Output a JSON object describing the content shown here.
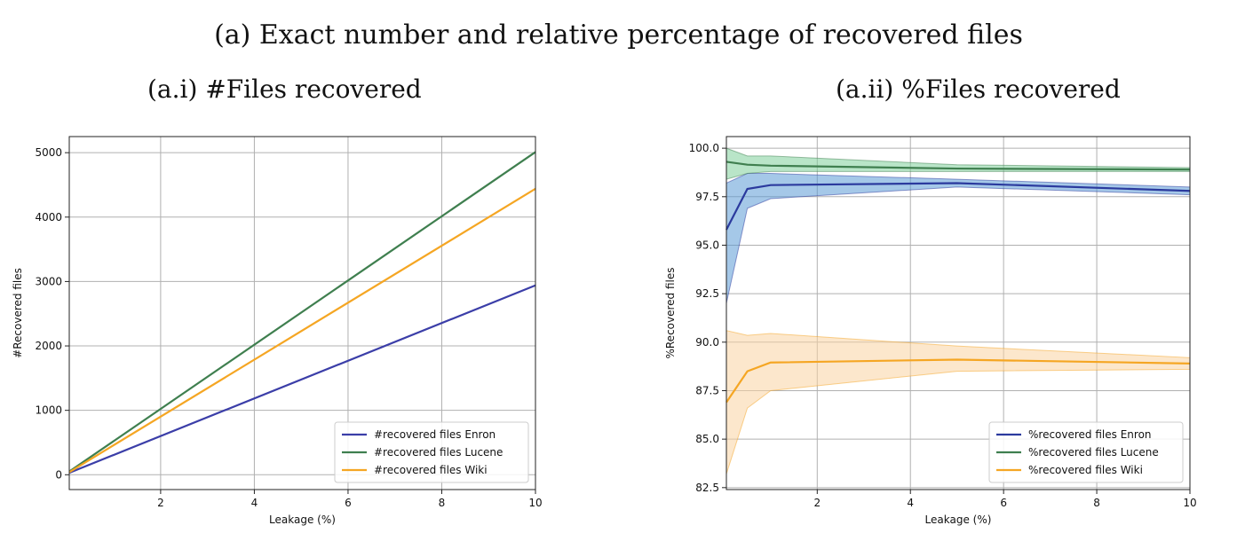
{
  "figure": {
    "title": "(a) Exact number and relative percentage of recovered files"
  },
  "chart_data": [
    {
      "type": "line",
      "title": "(a.i) #Files recovered",
      "xlabel": "Leakage (%)",
      "ylabel": "#Recovered files",
      "xlim": [
        0.05,
        10
      ],
      "ylim": [
        -230,
        5250
      ],
      "xticks": [
        "2",
        "4",
        "6",
        "8",
        "10"
      ],
      "yticks": [
        "0",
        "1000",
        "2000",
        "3000",
        "4000",
        "5000"
      ],
      "grid": true,
      "legend": "bottom-right",
      "series": [
        {
          "name": "#recovered files Enron",
          "color": "#3b3ea8",
          "x": [
            0.05,
            10
          ],
          "y": [
            30,
            2940
          ]
        },
        {
          "name": "#recovered files Lucene",
          "color": "#3f7f4f",
          "x": [
            0.05,
            10
          ],
          "y": [
            50,
            5010
          ]
        },
        {
          "name": "#recovered files Wiki",
          "color": "#f5a623",
          "x": [
            0.05,
            10
          ],
          "y": [
            40,
            4440
          ]
        }
      ]
    },
    {
      "type": "line",
      "title": "(a.ii) %Files recovered",
      "xlabel": "Leakage (%)",
      "ylabel": "%Recovered files",
      "xlim": [
        0.05,
        10
      ],
      "ylim": [
        82.4,
        100.6
      ],
      "xticks": [
        "2",
        "4",
        "6",
        "8",
        "10"
      ],
      "yticks": [
        "82.5",
        "85.0",
        "87.5",
        "90.0",
        "92.5",
        "95.0",
        "97.5",
        "100.0"
      ],
      "grid": true,
      "legend": "bottom-right",
      "series": [
        {
          "name": "%recovered files Enron",
          "color": "#2b3a9e",
          "fill": "#5b9bd5",
          "x": [
            0.05,
            0.5,
            1,
            5,
            10
          ],
          "y": [
            95.8,
            97.9,
            98.1,
            98.2,
            97.8
          ],
          "lower": [
            92.0,
            96.9,
            97.4,
            98.0,
            97.6
          ],
          "upper": [
            98.2,
            98.7,
            98.7,
            98.4,
            98.0
          ]
        },
        {
          "name": "%recovered files Lucene",
          "color": "#3f7f4f",
          "fill": "#7fcf9a",
          "x": [
            0.05,
            0.5,
            1,
            5,
            10
          ],
          "y": [
            99.3,
            99.15,
            99.1,
            98.95,
            98.9
          ],
          "lower": [
            98.4,
            98.7,
            98.8,
            98.8,
            98.8
          ],
          "upper": [
            100.0,
            99.6,
            99.6,
            99.15,
            99.0
          ]
        },
        {
          "name": "%recovered files Wiki",
          "color": "#f5a623",
          "fill": "#f9d3a3",
          "x": [
            0.05,
            0.5,
            1,
            5,
            10
          ],
          "y": [
            86.9,
            88.5,
            88.95,
            89.1,
            88.9
          ],
          "lower": [
            83.2,
            86.6,
            87.5,
            88.5,
            88.6
          ],
          "upper": [
            90.6,
            90.35,
            90.45,
            89.8,
            89.2
          ]
        }
      ]
    }
  ]
}
